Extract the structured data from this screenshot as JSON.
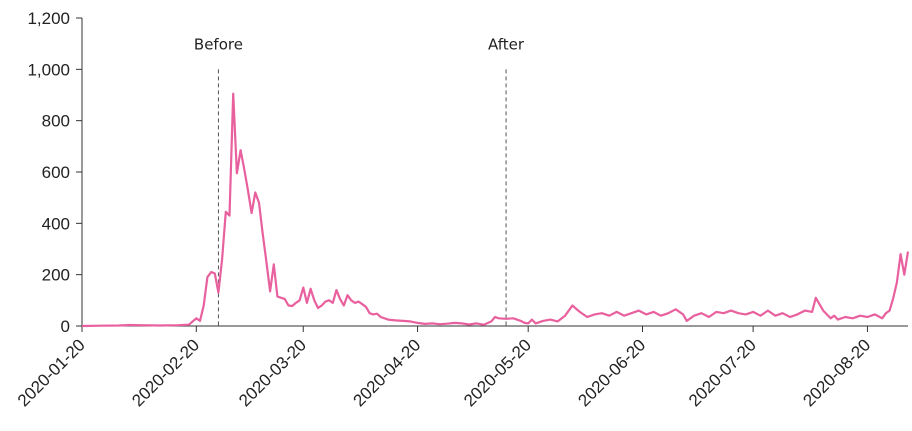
{
  "chart_data": {
    "type": "line",
    "title": "",
    "xlabel": "",
    "ylabel": "",
    "ylim": [
      0,
      1200
    ],
    "yticks": [
      0,
      200,
      400,
      600,
      800,
      1000,
      1200
    ],
    "ytick_labels": [
      "0",
      "200",
      "400",
      "600",
      "800",
      "1,000",
      "1,200"
    ],
    "xlim": [
      "2020-01-20",
      "2020-08-31"
    ],
    "xticks": [
      "2020-01-20",
      "2020-02-20",
      "2020-03-20",
      "2020-04-20",
      "2020-05-20",
      "2020-06-20",
      "2020-07-20",
      "2020-08-20"
    ],
    "grid": false,
    "line_color": "#e8609e",
    "annotations": [
      {
        "text": "Before",
        "x": "2020-02-26",
        "ymax": 1000
      },
      {
        "text": "After",
        "x": "2020-05-14",
        "ymax": 1000
      }
    ],
    "series": [
      {
        "points": [
          [
            "2020-01-20",
            0
          ],
          [
            "2020-01-25",
            1
          ],
          [
            "2020-01-30",
            2
          ],
          [
            "2020-02-02",
            4
          ],
          [
            "2020-02-05",
            3
          ],
          [
            "2020-02-10",
            2
          ],
          [
            "2020-02-15",
            3
          ],
          [
            "2020-02-18",
            5
          ],
          [
            "2020-02-20",
            30
          ],
          [
            "2020-02-21",
            20
          ],
          [
            "2020-02-22",
            80
          ],
          [
            "2020-02-23",
            190
          ],
          [
            "2020-02-24",
            210
          ],
          [
            "2020-02-25",
            205
          ],
          [
            "2020-02-26",
            130
          ],
          [
            "2020-02-27",
            260
          ],
          [
            "2020-02-28",
            445
          ],
          [
            "2020-02-29",
            430
          ],
          [
            "2020-03-01",
            905
          ],
          [
            "2020-03-02",
            595
          ],
          [
            "2020-03-03",
            685
          ],
          [
            "2020-03-04",
            610
          ],
          [
            "2020-03-05",
            530
          ],
          [
            "2020-03-06",
            440
          ],
          [
            "2020-03-07",
            520
          ],
          [
            "2020-03-08",
            480
          ],
          [
            "2020-03-09",
            360
          ],
          [
            "2020-03-10",
            250
          ],
          [
            "2020-03-11",
            135
          ],
          [
            "2020-03-12",
            240
          ],
          [
            "2020-03-13",
            115
          ],
          [
            "2020-03-14",
            110
          ],
          [
            "2020-03-15",
            105
          ],
          [
            "2020-03-16",
            80
          ],
          [
            "2020-03-17",
            78
          ],
          [
            "2020-03-18",
            90
          ],
          [
            "2020-03-19",
            100
          ],
          [
            "2020-03-20",
            150
          ],
          [
            "2020-03-21",
            90
          ],
          [
            "2020-03-22",
            145
          ],
          [
            "2020-03-23",
            100
          ],
          [
            "2020-03-24",
            70
          ],
          [
            "2020-03-25",
            80
          ],
          [
            "2020-03-26",
            95
          ],
          [
            "2020-03-27",
            100
          ],
          [
            "2020-03-28",
            90
          ],
          [
            "2020-03-29",
            140
          ],
          [
            "2020-03-30",
            105
          ],
          [
            "2020-03-31",
            80
          ],
          [
            "2020-04-01",
            120
          ],
          [
            "2020-04-02",
            100
          ],
          [
            "2020-04-03",
            90
          ],
          [
            "2020-04-04",
            95
          ],
          [
            "2020-04-05",
            85
          ],
          [
            "2020-04-06",
            75
          ],
          [
            "2020-04-07",
            50
          ],
          [
            "2020-04-08",
            45
          ],
          [
            "2020-04-09",
            48
          ],
          [
            "2020-04-10",
            35
          ],
          [
            "2020-04-12",
            25
          ],
          [
            "2020-04-14",
            22
          ],
          [
            "2020-04-16",
            20
          ],
          [
            "2020-04-18",
            18
          ],
          [
            "2020-04-20",
            12
          ],
          [
            "2020-04-22",
            8
          ],
          [
            "2020-04-24",
            10
          ],
          [
            "2020-04-26",
            7
          ],
          [
            "2020-04-28",
            9
          ],
          [
            "2020-04-30",
            12
          ],
          [
            "2020-05-02",
            10
          ],
          [
            "2020-05-04",
            6
          ],
          [
            "2020-05-06",
            10
          ],
          [
            "2020-05-08",
            5
          ],
          [
            "2020-05-10",
            18
          ],
          [
            "2020-05-11",
            35
          ],
          [
            "2020-05-12",
            30
          ],
          [
            "2020-05-14",
            28
          ],
          [
            "2020-05-16",
            30
          ],
          [
            "2020-05-18",
            20
          ],
          [
            "2020-05-19",
            12
          ],
          [
            "2020-05-20",
            10
          ],
          [
            "2020-05-21",
            25
          ],
          [
            "2020-05-22",
            10
          ],
          [
            "2020-05-24",
            20
          ],
          [
            "2020-05-26",
            25
          ],
          [
            "2020-05-28",
            18
          ],
          [
            "2020-05-30",
            40
          ],
          [
            "2020-06-01",
            80
          ],
          [
            "2020-06-03",
            55
          ],
          [
            "2020-06-05",
            35
          ],
          [
            "2020-06-07",
            45
          ],
          [
            "2020-06-09",
            50
          ],
          [
            "2020-06-11",
            40
          ],
          [
            "2020-06-13",
            55
          ],
          [
            "2020-06-15",
            40
          ],
          [
            "2020-06-17",
            50
          ],
          [
            "2020-06-19",
            60
          ],
          [
            "2020-06-21",
            45
          ],
          [
            "2020-06-23",
            55
          ],
          [
            "2020-06-25",
            40
          ],
          [
            "2020-06-27",
            50
          ],
          [
            "2020-06-29",
            65
          ],
          [
            "2020-07-01",
            45
          ],
          [
            "2020-07-02",
            20
          ],
          [
            "2020-07-04",
            40
          ],
          [
            "2020-07-06",
            50
          ],
          [
            "2020-07-08",
            35
          ],
          [
            "2020-07-10",
            55
          ],
          [
            "2020-07-12",
            50
          ],
          [
            "2020-07-14",
            60
          ],
          [
            "2020-07-16",
            50
          ],
          [
            "2020-07-18",
            45
          ],
          [
            "2020-07-20",
            55
          ],
          [
            "2020-07-22",
            40
          ],
          [
            "2020-07-24",
            60
          ],
          [
            "2020-07-26",
            40
          ],
          [
            "2020-07-28",
            50
          ],
          [
            "2020-07-30",
            35
          ],
          [
            "2020-08-01",
            45
          ],
          [
            "2020-08-03",
            60
          ],
          [
            "2020-08-05",
            55
          ],
          [
            "2020-08-06",
            110
          ],
          [
            "2020-08-08",
            60
          ],
          [
            "2020-08-10",
            30
          ],
          [
            "2020-08-11",
            40
          ],
          [
            "2020-08-12",
            25
          ],
          [
            "2020-08-14",
            35
          ],
          [
            "2020-08-16",
            30
          ],
          [
            "2020-08-18",
            40
          ],
          [
            "2020-08-20",
            35
          ],
          [
            "2020-08-22",
            45
          ],
          [
            "2020-08-24",
            30
          ],
          [
            "2020-08-25",
            50
          ],
          [
            "2020-08-26",
            60
          ],
          [
            "2020-08-27",
            110
          ],
          [
            "2020-08-28",
            170
          ],
          [
            "2020-08-29",
            280
          ],
          [
            "2020-08-30",
            200
          ],
          [
            "2020-08-31",
            290
          ]
        ]
      }
    ]
  }
}
